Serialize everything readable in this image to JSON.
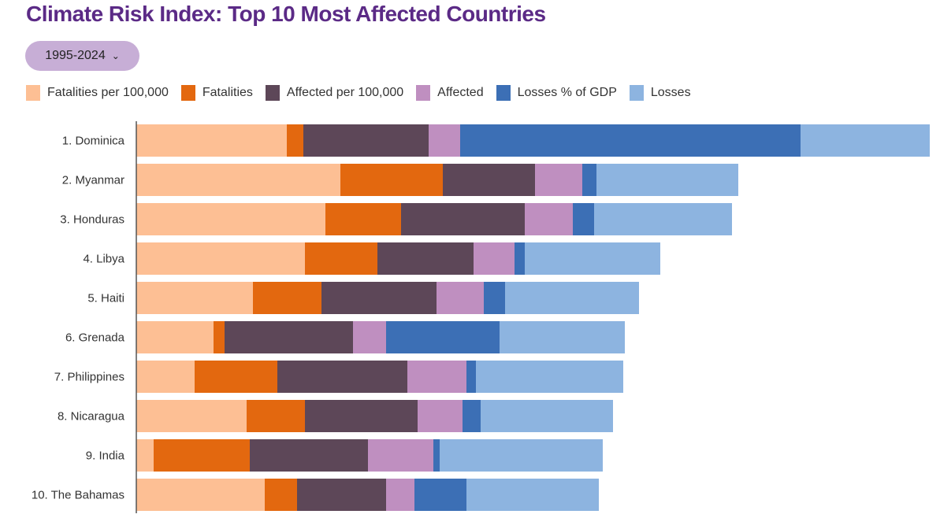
{
  "chart_data": {
    "type": "bar",
    "orientation": "horizontal",
    "stacked": true,
    "title": "Climate Risk Index: Top 10 Most Affected Countries",
    "categories": [
      "1. Dominica",
      "2. Myanmar",
      "3. Honduras",
      "4. Libya",
      "5. Haiti",
      "6. Grenada",
      "7. Philippines",
      "8. Nicaragua",
      "9. India",
      "10. The Bahamas"
    ],
    "series": [
      {
        "name": "Fatalities per 100,000",
        "color": "#fdbf94",
        "values": [
          19.1,
          25.9,
          24.0,
          21.4,
          14.8,
          9.8,
          7.4,
          14.0,
          2.2,
          16.3
        ]
      },
      {
        "name": "Fatalities",
        "color": "#e3680f",
        "values": [
          2.1,
          13.0,
          9.6,
          9.2,
          8.7,
          1.4,
          10.5,
          7.4,
          12.2,
          4.1
        ]
      },
      {
        "name": "Affected per 100,000",
        "color": "#5d4758",
        "values": [
          15.9,
          11.7,
          15.7,
          12.2,
          14.6,
          16.3,
          16.5,
          14.3,
          15.0,
          11.3
        ]
      },
      {
        "name": "Affected",
        "color": "#bf8fc0",
        "values": [
          4.0,
          6.0,
          6.1,
          5.2,
          6.0,
          4.2,
          7.5,
          5.7,
          8.3,
          3.6
        ]
      },
      {
        "name": "Losses % of GDP",
        "color": "#3c6fb5",
        "values": [
          43.2,
          1.8,
          2.7,
          1.3,
          2.7,
          14.4,
          1.2,
          2.3,
          0.8,
          6.6
        ]
      },
      {
        "name": "Losses",
        "color": "#8db4e0",
        "values": [
          16.4,
          18.0,
          17.5,
          17.2,
          17.0,
          15.9,
          18.7,
          16.8,
          20.7,
          16.8
        ]
      }
    ],
    "xlim": [
      0,
      100.7
    ],
    "grid": false,
    "legend_position": "top-left",
    "xlabel": "",
    "ylabel": ""
  },
  "filter": {
    "period": "1995-2024",
    "chevron": "chevron-down-icon"
  },
  "title_color": "#5b2a86"
}
